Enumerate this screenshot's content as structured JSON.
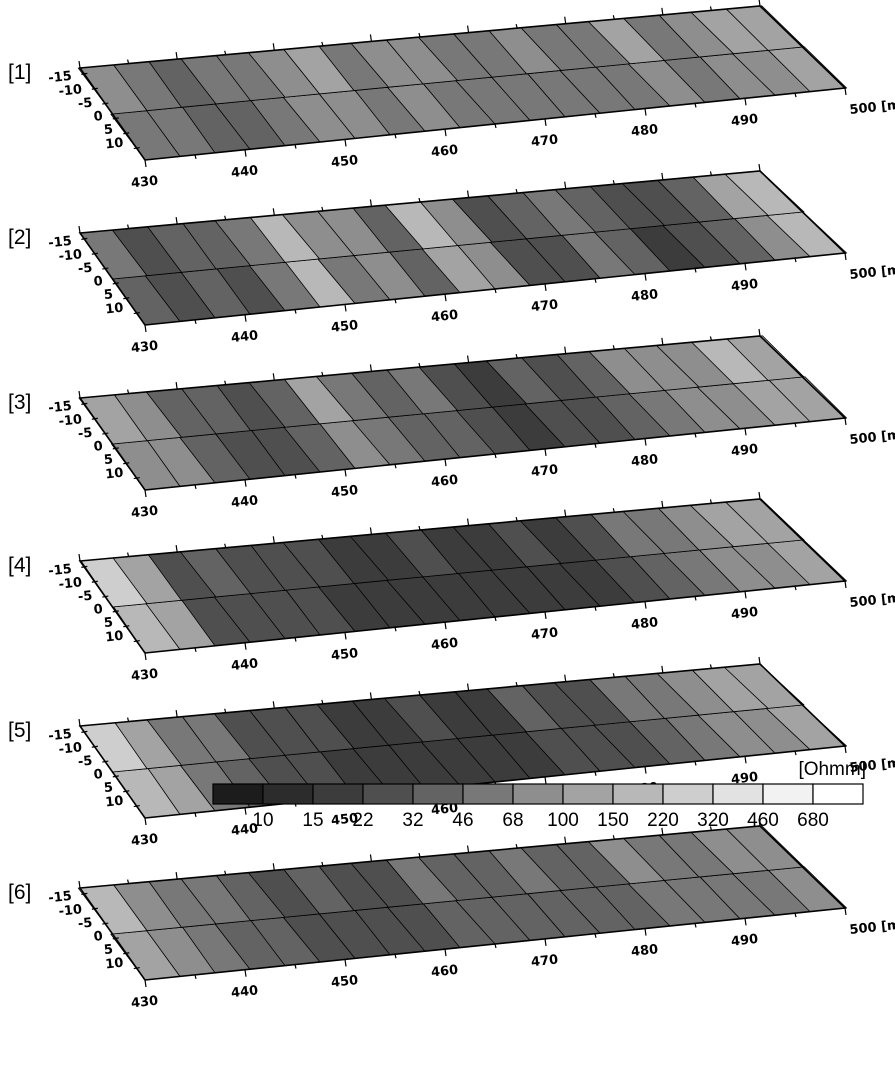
{
  "chart_data": {
    "type": "heatmap",
    "title": "",
    "layers": [
      {
        "label": "[1]",
        "levels": [
          3,
          3,
          2,
          2,
          3,
          4,
          4,
          3,
          4,
          3,
          3,
          3,
          3,
          3,
          3,
          4,
          3,
          4,
          4,
          5
        ]
      },
      {
        "label": "[2]",
        "levels": [
          2,
          1,
          2,
          1,
          3,
          6,
          3,
          4,
          2,
          5,
          4,
          1,
          1,
          3,
          2,
          0,
          1,
          2,
          4,
          6
        ]
      },
      {
        "label": "[3]",
        "levels": [
          4,
          4,
          2,
          1,
          1,
          2,
          4,
          3,
          2,
          2,
          1,
          0,
          1,
          1,
          2,
          3,
          4,
          4,
          5,
          5
        ]
      },
      {
        "label": "[4]",
        "levels": [
          6,
          5,
          1,
          1,
          1,
          1,
          0,
          0,
          0,
          0,
          0,
          0,
          0,
          0,
          1,
          2,
          3,
          4,
          4,
          5
        ]
      },
      {
        "label": "[5]",
        "levels": [
          6,
          5,
          3,
          2,
          1,
          1,
          0,
          0,
          0,
          0,
          0,
          0,
          1,
          1,
          1,
          2,
          3,
          4,
          4,
          5
        ]
      },
      {
        "label": "[6]",
        "levels": [
          5,
          4,
          3,
          2,
          2,
          1,
          1,
          1,
          1,
          2,
          2,
          2,
          2,
          2,
          2,
          3,
          3,
          3,
          3,
          4
        ]
      }
    ],
    "x_ticks": [
      "430",
      "440",
      "450",
      "460",
      "470",
      "480",
      "490",
      "500 [m]"
    ],
    "y_ticks": [
      "10",
      "5",
      "0",
      "-5",
      "-10",
      "-15"
    ],
    "legend": {
      "unit": "[Ohmm]",
      "levels": [
        "10",
        "15",
        "22",
        "32",
        "46",
        "68",
        "100",
        "150",
        "220",
        "320",
        "460",
        "680"
      ],
      "colors": [
        "#1c1c1c",
        "#2c2c2c",
        "#3c3c3c",
        "#4f4f4f",
        "#636363",
        "#787878",
        "#8e8e8e",
        "#a3a3a3",
        "#b8b8b8",
        "#cecece",
        "#e2e2e2",
        "#f2f2f2",
        "#ffffff"
      ]
    }
  }
}
